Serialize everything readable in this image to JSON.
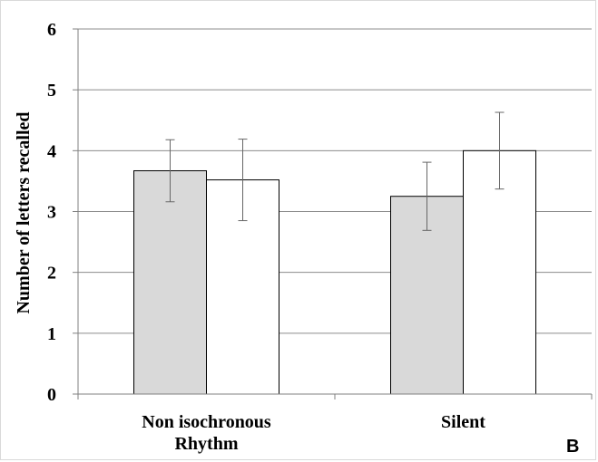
{
  "chart_data": {
    "type": "bar",
    "categories": [
      "Non isochronous\nRhythm",
      "Silent"
    ],
    "series": [
      {
        "values": [
          3.67,
          3.25
        ],
        "errors": [
          0.51,
          0.56
        ],
        "color": "#d9d9d9"
      },
      {
        "values": [
          3.52,
          4.0
        ],
        "errors": [
          0.67,
          0.63
        ],
        "color": "#ffffff"
      }
    ],
    "ylabel": "Number of letters recalled",
    "ylim": [
      0,
      6
    ],
    "yticks": [
      0,
      1,
      2,
      3,
      4,
      5,
      6
    ],
    "grid": true,
    "panel_label": "B"
  }
}
